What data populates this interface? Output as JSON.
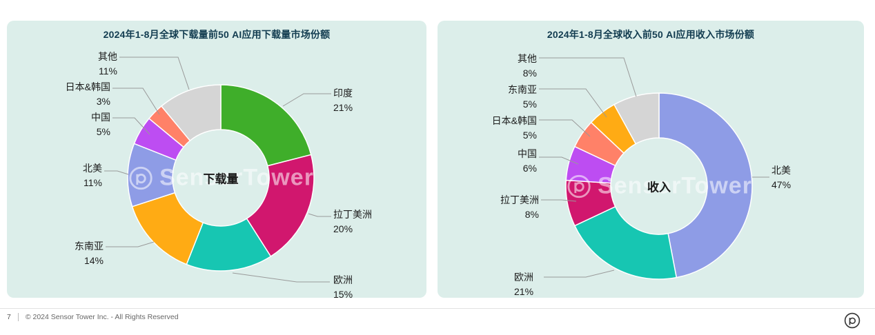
{
  "footer": {
    "page_number": "7",
    "copyright": "© 2024 Sensor Tower Inc. - All Rights Reserved"
  },
  "watermark_text": "SensorTower",
  "chart_data": [
    {
      "type": "pie",
      "subtype": "donut",
      "title": "2024年1-8月全球下载量前50 AI应用下载量市场份额",
      "center_label": "下载量",
      "unit": "%",
      "legend_position": "callout-labels",
      "slices": [
        {
          "label": "印度",
          "value": 21,
          "pct": "21%",
          "color": "#3fae2a"
        },
        {
          "label": "拉丁美洲",
          "value": 20,
          "pct": "20%",
          "color": "#d1176e"
        },
        {
          "label": "欧洲",
          "value": 15,
          "pct": "15%",
          "color": "#17c6b2"
        },
        {
          "label": "东南亚",
          "value": 14,
          "pct": "14%",
          "color": "#ffab14"
        },
        {
          "label": "北美",
          "value": 11,
          "pct": "11%",
          "color": "#8e9ce6"
        },
        {
          "label": "中国",
          "value": 5,
          "pct": "5%",
          "color": "#bd4df2"
        },
        {
          "label": "日本&韩国",
          "value": 3,
          "pct": "3%",
          "color": "#ff8168"
        },
        {
          "label": "其他",
          "value": 11,
          "pct": "11%",
          "color": "#d5d5d5"
        }
      ]
    },
    {
      "type": "pie",
      "subtype": "donut",
      "title": "2024年1-8月全球收入前50 AI应用收入市场份额",
      "center_label": "收入",
      "unit": "%",
      "legend_position": "callout-labels",
      "slices": [
        {
          "label": "北美",
          "value": 47,
          "pct": "47%",
          "color": "#8e9ce6"
        },
        {
          "label": "欧洲",
          "value": 21,
          "pct": "21%",
          "color": "#17c6b2"
        },
        {
          "label": "拉丁美洲",
          "value": 8,
          "pct": "8%",
          "color": "#d1176e"
        },
        {
          "label": "中国",
          "value": 6,
          "pct": "6%",
          "color": "#bd4df2"
        },
        {
          "label": "日本&韩国",
          "value": 5,
          "pct": "5%",
          "color": "#ff8168"
        },
        {
          "label": "东南亚",
          "value": 5,
          "pct": "5%",
          "color": "#ffab14"
        },
        {
          "label": "其他",
          "value": 8,
          "pct": "8%",
          "color": "#d5d5d5"
        }
      ]
    }
  ]
}
